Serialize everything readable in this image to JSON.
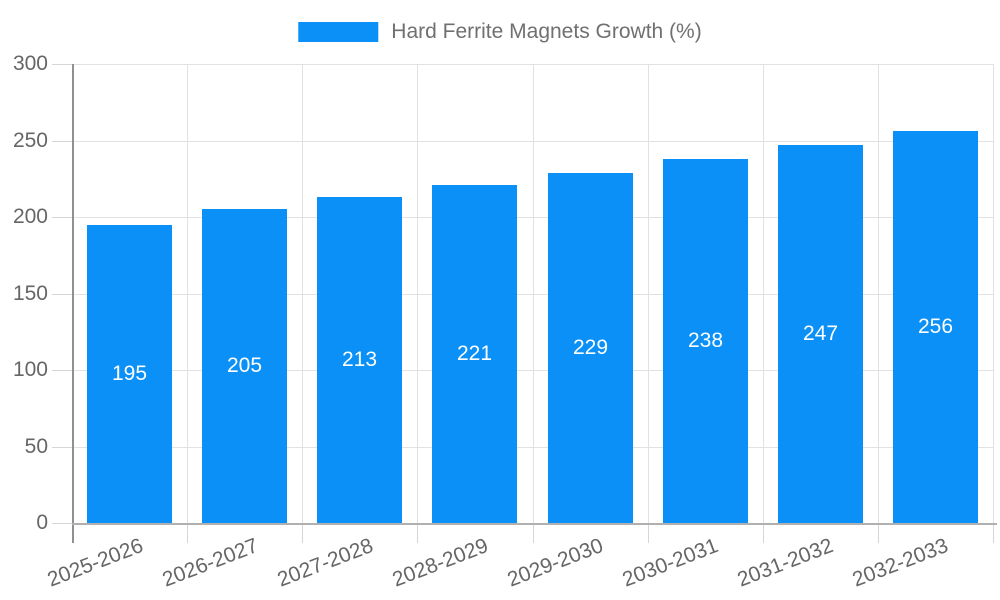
{
  "legend": {
    "label": "Hard Ferrite Magnets Growth (%)"
  },
  "chart_data": {
    "type": "bar",
    "title": "Hard Ferrite Magnets Growth (%)",
    "legend_entries": [
      "Hard Ferrite Magnets Growth (%)"
    ],
    "legend_position": "top",
    "categories": [
      "2025-2026",
      "2026-2027",
      "2027-2028",
      "2028-2029",
      "2029-2030",
      "2030-2031",
      "2031-2032",
      "2032-2033"
    ],
    "values": [
      195,
      205,
      213,
      221,
      229,
      238,
      247,
      256
    ],
    "xlabel": "",
    "ylabel": "",
    "ylim": [
      0,
      300
    ],
    "yticks": [
      0,
      50,
      100,
      150,
      200,
      250,
      300
    ],
    "grid": true,
    "colors": {
      "bar": "#0A90F6",
      "value_label": "#FFFFFF",
      "axis_text": "#666666",
      "legend_text": "#707070",
      "grid_line": "#E2E2E2",
      "tick_line": "#D6D6D6",
      "y_axis_line": "#909090",
      "x_axis_line": "#B0B0B0"
    }
  }
}
